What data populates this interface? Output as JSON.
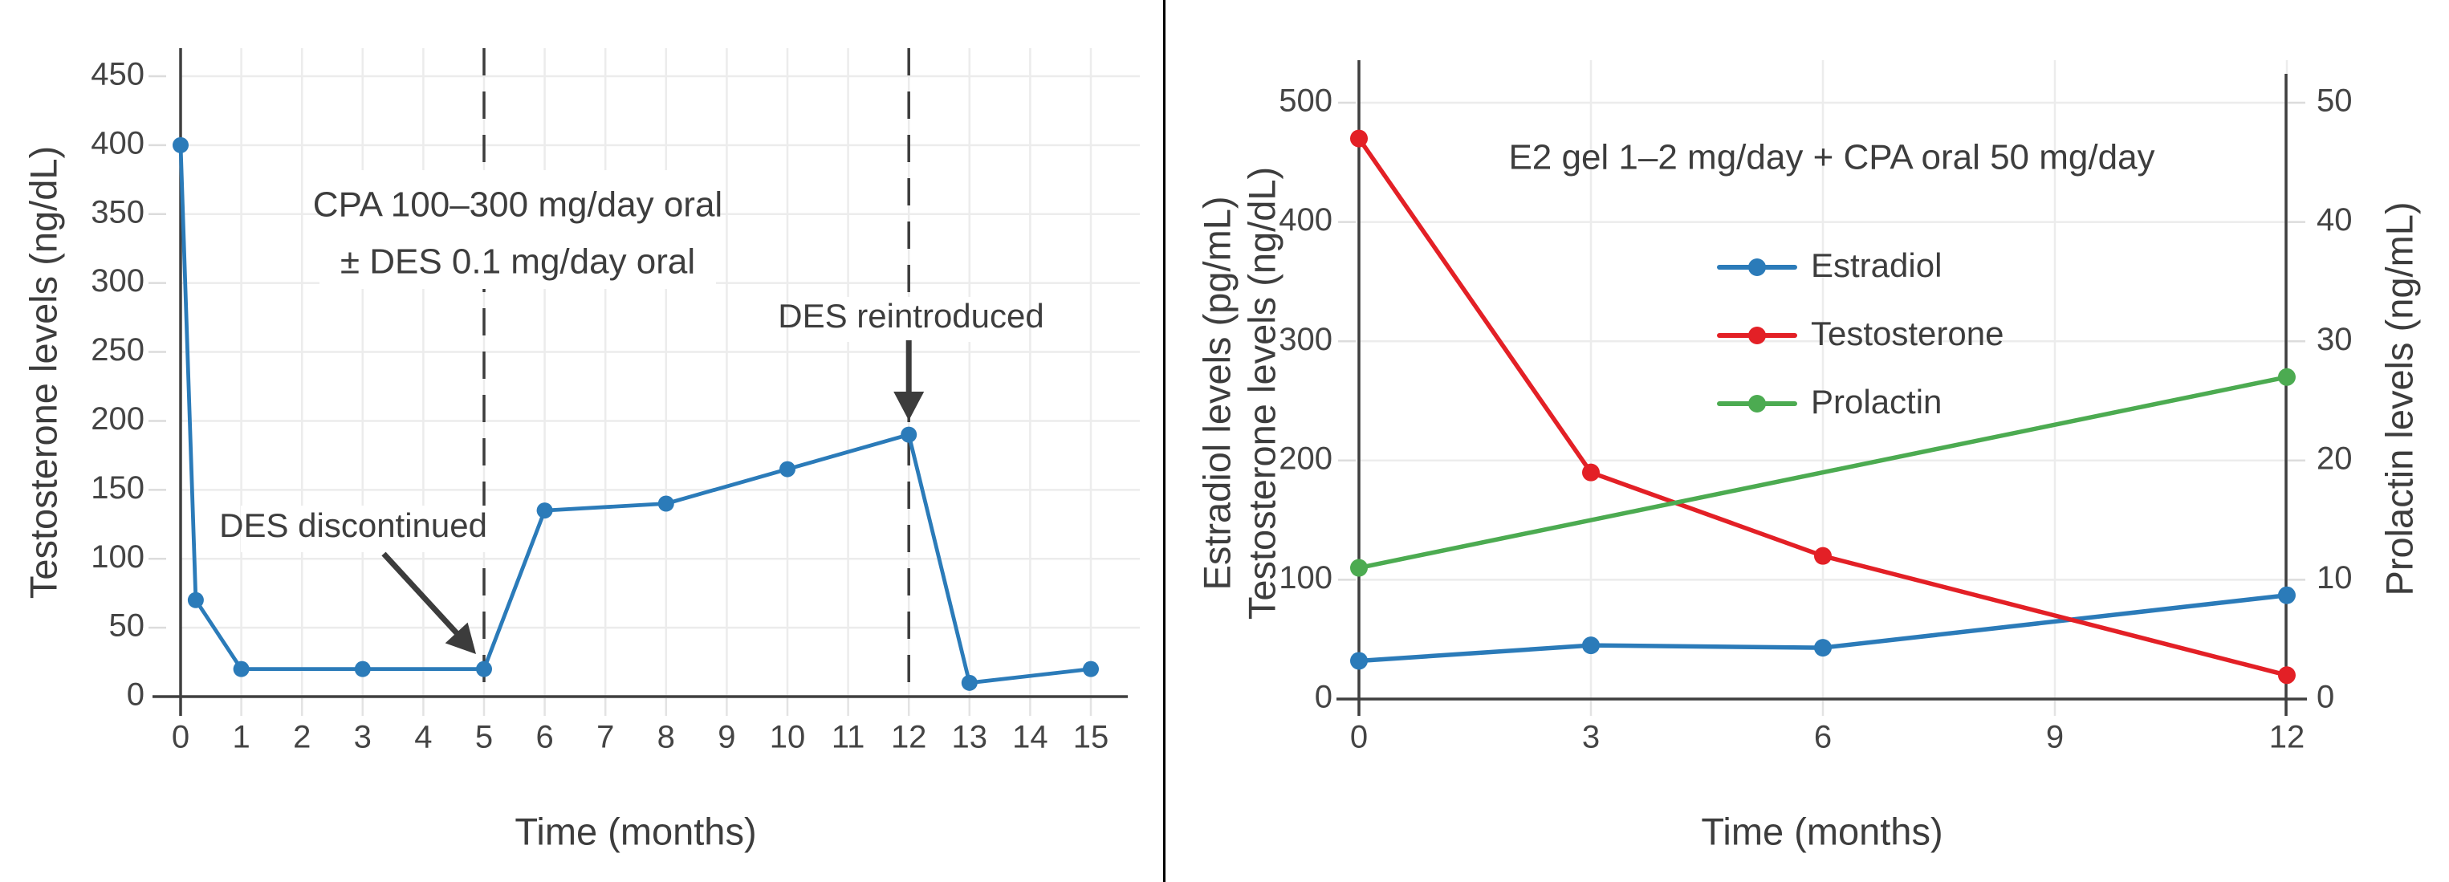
{
  "figure": {
    "divider_color": "#000000",
    "background": "#ffffff",
    "text_color": "#3d3d3d",
    "tick_color": "#444444",
    "spine_color": "#3f3f3f",
    "grid_color": "#ececec",
    "tick_stub_color": "#dcdcdc"
  },
  "chart_data": [
    {
      "type": "line",
      "title": "",
      "xlabel": "Time (months)",
      "ylabel": "Testosterone levels (ng/dL)",
      "xlim": [
        0,
        15.8
      ],
      "ylim": [
        0,
        470
      ],
      "grid": true,
      "legend_position": "none",
      "xticks": [
        0,
        1,
        2,
        3,
        4,
        5,
        6,
        7,
        8,
        9,
        10,
        11,
        12,
        13,
        14,
        15
      ],
      "yticks": [
        0,
        50,
        100,
        150,
        200,
        250,
        300,
        350,
        400,
        450
      ],
      "series": [
        {
          "name": "Testosterone",
          "color": "#2b7bb9",
          "x": [
            0,
            0.25,
            1,
            3,
            5,
            6,
            8,
            10,
            12,
            13,
            15
          ],
          "values": [
            400,
            70,
            20,
            20,
            20,
            135,
            140,
            165,
            190,
            10,
            20
          ]
        }
      ],
      "vlines": [
        {
          "x": 5,
          "style": "dashed",
          "color": "#3c3c3c"
        },
        {
          "x": 12,
          "style": "dashed",
          "color": "#3c3c3c"
        }
      ],
      "annotations": [
        {
          "kind": "text-block",
          "lines": [
            "CPA 100–300 mg/day oral",
            "± DES 0.1 mg/day oral"
          ]
        },
        {
          "kind": "label-arrow",
          "text": "DES discontinued",
          "arrow_to_data": [
            5,
            20
          ]
        },
        {
          "kind": "label-arrow",
          "text": "DES reintroduced",
          "arrow_to_data": [
            12,
            200
          ]
        }
      ]
    },
    {
      "type": "line",
      "title": "E2 gel 1–2 mg/day + CPA oral 50 mg/day",
      "xlabel": "Time (months)",
      "ylabel_left_lines": [
        "Estradiol levels (pg/mL)",
        "Testosterone levels (ng/dL)"
      ],
      "ylabel_right": "Prolactin levels (ng/mL)",
      "xlim": [
        0,
        12
      ],
      "ylim_left": [
        0,
        535
      ],
      "ylim_right": [
        0,
        53.5
      ],
      "grid": true,
      "xticks": [
        0,
        3,
        6,
        9,
        12
      ],
      "yticks_left": [
        0,
        100,
        200,
        300,
        400,
        500
      ],
      "yticks_right": [
        0,
        10,
        20,
        30,
        40,
        50
      ],
      "legend": {
        "position": "upper-center",
        "entries": [
          "Estradiol",
          "Testosterone",
          "Prolactin"
        ]
      },
      "series": [
        {
          "name": "Estradiol",
          "axis": "left",
          "color": "#2b7bb9",
          "x": [
            0,
            3,
            6,
            12
          ],
          "values": [
            32,
            45,
            43,
            87
          ]
        },
        {
          "name": "Testosterone",
          "axis": "left",
          "color": "#e32026",
          "x": [
            0,
            3,
            6,
            12
          ],
          "values": [
            470,
            190,
            120,
            20
          ]
        },
        {
          "name": "Prolactin",
          "axis": "right",
          "color": "#4cab51",
          "x": [
            0,
            12
          ],
          "values": [
            11,
            27
          ]
        }
      ]
    }
  ]
}
